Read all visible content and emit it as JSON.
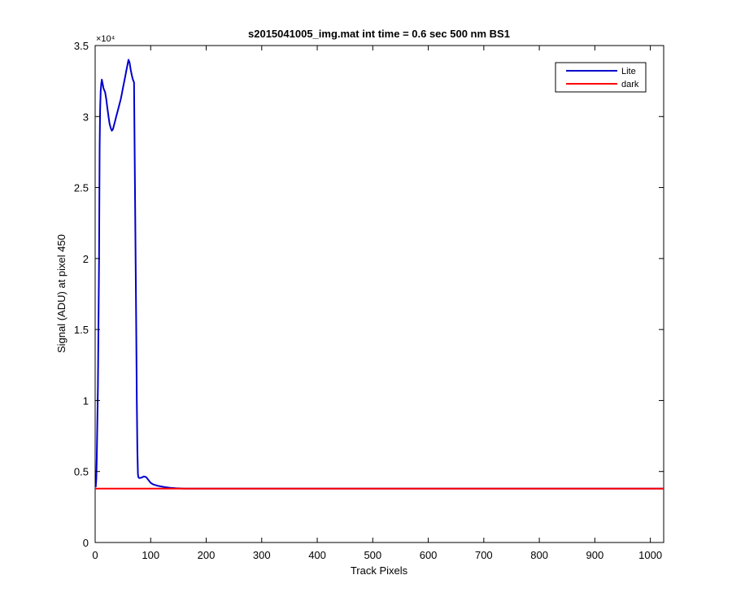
{
  "chart_data": {
    "type": "line",
    "title": "s2015041005_img.mat int time = 0.6 sec  500 nm BS1",
    "xlabel": "Track Pixels",
    "ylabel": "Signal (ADU) at pixel 450",
    "y_exponent_label": "×10⁴",
    "xlim": [
      0,
      1024
    ],
    "ylim": [
      0,
      35000
    ],
    "x_ticks": [
      0,
      100,
      200,
      300,
      400,
      500,
      600,
      700,
      800,
      900,
      1000
    ],
    "x_tick_labels": [
      "0",
      "100",
      "200",
      "300",
      "400",
      "500",
      "600",
      "700",
      "800",
      "900",
      "1000"
    ],
    "y_ticks": [
      0,
      5000,
      10000,
      15000,
      20000,
      25000,
      30000,
      35000
    ],
    "y_tick_labels": [
      "0",
      "0.5",
      "1",
      "1.5",
      "2",
      "2.5",
      "3",
      "3.5"
    ],
    "grid": false,
    "legend_position": "top-right",
    "series": [
      {
        "name": "Lite",
        "color": "#0000cc",
        "x": [
          1,
          2,
          3,
          4,
          5,
          6,
          7,
          8,
          9,
          10,
          11,
          12,
          13,
          14,
          15,
          16,
          18,
          20,
          22,
          24,
          26,
          28,
          30,
          32,
          34,
          36,
          38,
          40,
          42,
          44,
          46,
          48,
          50,
          52,
          54,
          56,
          58,
          60,
          62,
          64,
          66,
          68,
          70,
          72,
          74,
          75,
          76,
          77,
          78,
          79,
          80,
          82,
          85,
          88,
          92,
          96,
          100,
          104,
          108,
          112,
          118,
          125,
          135,
          145,
          160,
          200,
          300,
          400,
          500,
          600,
          700,
          800,
          900,
          1024
        ],
        "values": [
          3900,
          4500,
          6000,
          8500,
          11000,
          15500,
          20000,
          27800,
          30500,
          31800,
          32300,
          32600,
          32400,
          32200,
          32000,
          31900,
          31700,
          31200,
          30600,
          30000,
          29500,
          29200,
          29000,
          29100,
          29400,
          29700,
          30000,
          30300,
          30600,
          30900,
          31200,
          31600,
          32000,
          32400,
          32800,
          33200,
          33600,
          34000,
          33800,
          33300,
          32900,
          32600,
          32400,
          24000,
          15000,
          10000,
          6500,
          4800,
          4600,
          4550,
          4550,
          4550,
          4600,
          4650,
          4600,
          4400,
          4200,
          4100,
          4050,
          4000,
          3950,
          3900,
          3850,
          3820,
          3800,
          3800,
          3800,
          3800,
          3800,
          3800,
          3800,
          3800,
          3800,
          3800
        ]
      },
      {
        "name": "dark",
        "color": "#ff0000",
        "x": [
          0,
          1024
        ],
        "values": [
          3800,
          3800
        ]
      }
    ]
  }
}
